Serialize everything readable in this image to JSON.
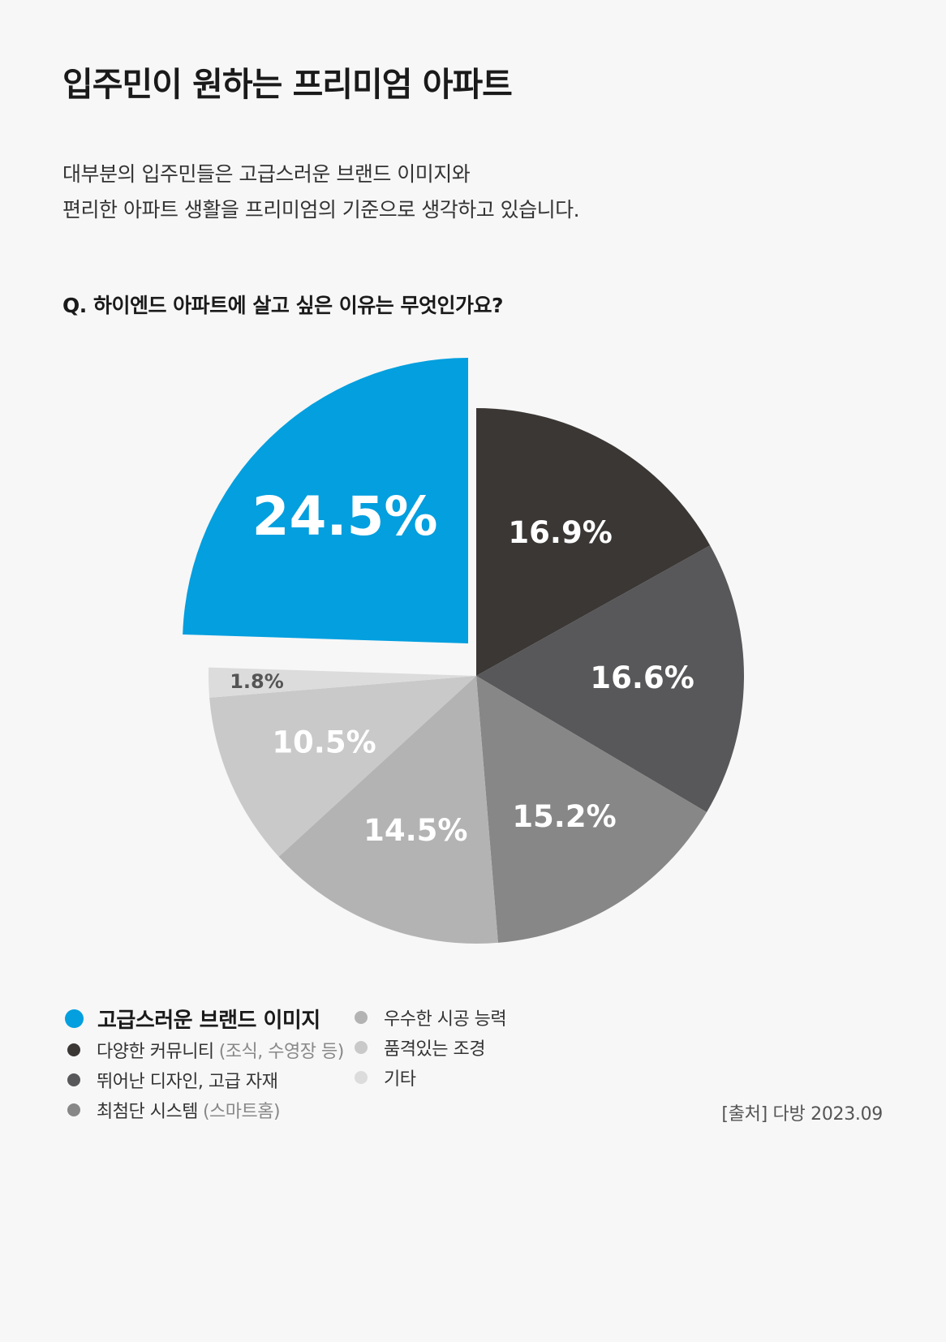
{
  "title": "입주민이 원하는 프리미엄 아파트",
  "description": [
    "대부분의 입주민들은 고급스러운 브랜드 이미지와",
    "편리한 아파트 생활을 프리미엄의 기준으로 생각하고 있습니다."
  ],
  "question": "Q. 하이엔드 아파트에 살고 싶은 이유는 무엇인가요?",
  "colors": {
    "accent": "#039fdf",
    "background": "#f7f7f7"
  },
  "chart_data": {
    "type": "pie",
    "title": "",
    "slices": [
      {
        "label": "다양한 커뮤니티",
        "note": "(조식, 수영장 등)",
        "value": 16.9,
        "value_label": "16.9%",
        "color": "#3b3735"
      },
      {
        "label": "뛰어난 디자인, 고급 자재",
        "note": "",
        "value": 16.6,
        "value_label": "16.6%",
        "color": "#58585a"
      },
      {
        "label": "최첨단 시스템",
        "note": "(스마트홈)",
        "value": 15.2,
        "value_label": "15.2%",
        "color": "#878787"
      },
      {
        "label": "우수한 시공 능력",
        "note": "",
        "value": 14.5,
        "value_label": "14.5%",
        "color": "#b3b3b3"
      },
      {
        "label": "품격있는 조경",
        "note": "",
        "value": 10.5,
        "value_label": "10.5%",
        "color": "#c9c9c9"
      },
      {
        "label": "기타",
        "note": "",
        "value": 1.8,
        "value_label": "1.8%",
        "color": "#dcdcdc"
      },
      {
        "label": "고급스러운 브랜드 이미지",
        "note": "",
        "value": 24.5,
        "value_label": "24.5%",
        "color": "#039fdf",
        "highlight": true
      }
    ],
    "start_angle_deg": 0,
    "direction": "clockwise",
    "exploded": "고급스러운 브랜드 이미지"
  },
  "legend": {
    "col1": [
      {
        "label": "고급스러운 브랜드 이미지",
        "note": "",
        "color": "#039fdf",
        "highlight": true
      },
      {
        "label": "다양한 커뮤니티",
        "note": "(조식, 수영장 등)",
        "color": "#3b3735"
      },
      {
        "label": "뛰어난 디자인, 고급 자재",
        "note": "",
        "color": "#58585a"
      },
      {
        "label": "최첨단 시스템",
        "note": "(스마트홈)",
        "color": "#878787"
      }
    ],
    "col2": [
      {
        "label": "우수한 시공 능력",
        "note": "",
        "color": "#b3b3b3"
      },
      {
        "label": "품격있는 조경",
        "note": "",
        "color": "#c9c9c9"
      },
      {
        "label": "기타",
        "note": "",
        "color": "#dcdcdc"
      }
    ]
  },
  "source": "[출처] 다방 2023.09"
}
